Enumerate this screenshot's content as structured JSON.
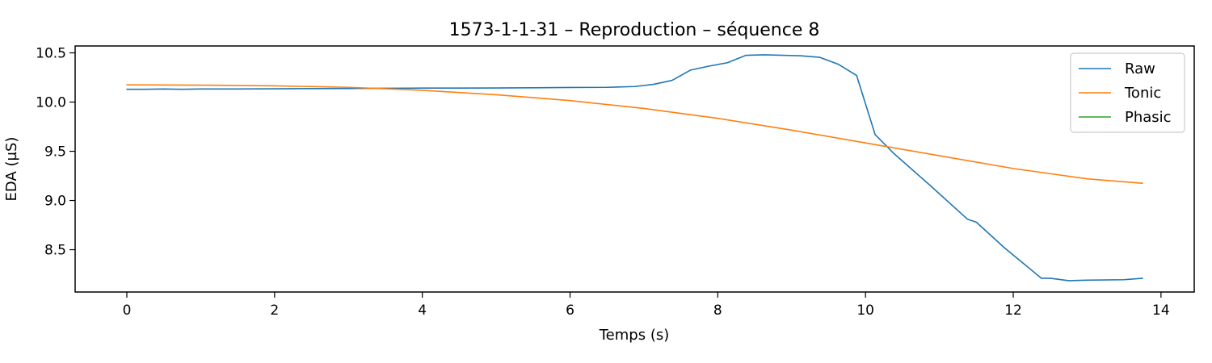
{
  "chart_data": {
    "type": "line",
    "title": "1573-1-1-31 – Reproduction – séquence 8",
    "xlabel": "Temps (s)",
    "ylabel": "EDA (µS)",
    "xlim": [
      -0.7,
      14.45
    ],
    "ylim": [
      8.07,
      10.57
    ],
    "xticks": [
      0,
      2,
      4,
      6,
      8,
      10,
      12,
      14
    ],
    "yticks": [
      8.5,
      9.0,
      9.5,
      10.0,
      10.5
    ],
    "xtick_labels": [
      "0",
      "2",
      "4",
      "6",
      "8",
      "10",
      "12",
      "14"
    ],
    "ytick_labels": [
      "8.5",
      "9.0",
      "9.5",
      "10.0",
      "10.5"
    ],
    "grid": false,
    "legend_position": "top-right",
    "series": [
      {
        "name": "Raw",
        "color": "#1f77b4",
        "x": [
          0,
          0.25,
          0.5,
          0.75,
          1.0,
          1.5,
          2.0,
          2.5,
          3.0,
          3.5,
          4.0,
          4.5,
          5.0,
          5.5,
          6.0,
          6.5,
          6.88,
          7.13,
          7.38,
          7.63,
          7.88,
          8.13,
          8.38,
          8.63,
          8.88,
          9.13,
          9.38,
          9.63,
          9.88,
          10.13,
          10.38,
          10.88,
          11.38,
          11.5,
          11.88,
          12.38,
          12.5,
          12.75,
          13.0,
          13.5,
          13.75
        ],
        "y": [
          10.13,
          10.13,
          10.133,
          10.13,
          10.133,
          10.133,
          10.135,
          10.137,
          10.138,
          10.14,
          10.142,
          10.142,
          10.143,
          10.145,
          10.148,
          10.15,
          10.158,
          10.18,
          10.22,
          10.325,
          10.365,
          10.4,
          10.475,
          10.48,
          10.475,
          10.47,
          10.455,
          10.385,
          10.27,
          9.67,
          9.48,
          9.15,
          8.81,
          8.78,
          8.52,
          8.21,
          8.21,
          8.185,
          8.19,
          8.195,
          8.21
        ]
      },
      {
        "name": "Tonic",
        "color": "#ff7f0e",
        "x": [
          0,
          1,
          2,
          3,
          4,
          5,
          6,
          7,
          8,
          9,
          10,
          11,
          12,
          13,
          13.75
        ],
        "y": [
          10.175,
          10.172,
          10.165,
          10.15,
          10.12,
          10.075,
          10.015,
          9.935,
          9.835,
          9.715,
          9.585,
          9.455,
          9.325,
          9.22,
          9.175
        ]
      },
      {
        "name": "Phasic",
        "color": "#2ca02c",
        "x": [],
        "y": []
      }
    ]
  }
}
